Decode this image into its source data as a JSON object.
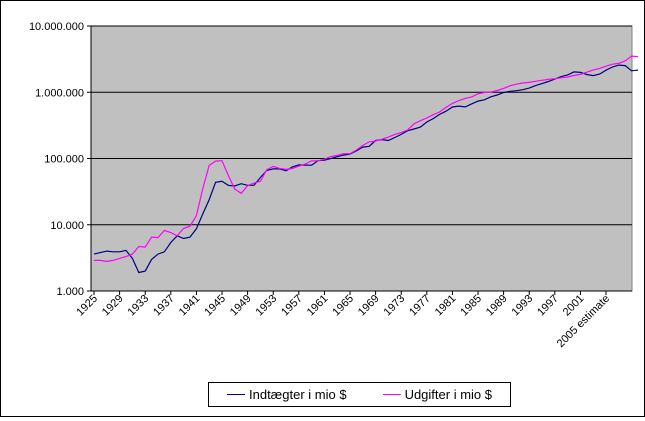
{
  "chart_data": {
    "type": "line",
    "title": "",
    "xlabel": "",
    "ylabel": "",
    "y_scale": "log",
    "ylim": [
      1000,
      10000000
    ],
    "grid": "horizontal",
    "plot_background": "#C0C0C0",
    "legend_position": "bottom",
    "y_ticks": [
      1000,
      10000,
      100000,
      1000000,
      10000000
    ],
    "y_tick_labels": [
      "1.000",
      "10.000",
      "100.000",
      "1.000.000",
      "10.000.000"
    ],
    "x_tick_labels": [
      "1925",
      "1929",
      "1933",
      "1937",
      "1941",
      "1945",
      "1949",
      "1953",
      "1957",
      "1961",
      "1965",
      "1969",
      "1973",
      "1977",
      "1981",
      "1985",
      "1989",
      "1993",
      "1997",
      "2001",
      "2005 estimate"
    ],
    "x": [
      "1925",
      "1926",
      "1927",
      "1928",
      "1929",
      "1930",
      "1931",
      "1932",
      "1933",
      "1934",
      "1935",
      "1936",
      "1937",
      "1938",
      "1939",
      "1940",
      "1941",
      "1942",
      "1943",
      "1944",
      "1945",
      "1946",
      "1947",
      "1948",
      "1949",
      "1950",
      "1951",
      "1952",
      "1953",
      "1954",
      "1955",
      "1956",
      "1957",
      "1958",
      "1959",
      "1960",
      "1961",
      "1962",
      "1963",
      "1964",
      "1965",
      "1966",
      "1967",
      "1968",
      "1969",
      "1970",
      "1971",
      "1972",
      "1973",
      "1974",
      "1975",
      "1976",
      "1977",
      "1978",
      "1979",
      "1980",
      "1981",
      "1982",
      "1983",
      "1984",
      "1985",
      "1986",
      "1987",
      "1988",
      "1989",
      "1990",
      "1991",
      "1992",
      "1993",
      "1994",
      "1995",
      "1996",
      "1997",
      "1998",
      "1999",
      "2000",
      "2001",
      "2002",
      "2003",
      "2004",
      "2005 estimate",
      "2006",
      "2007",
      "2008",
      "2009",
      "2010"
    ],
    "series": [
      {
        "name": "Indtægter i mio $",
        "color": "#000080",
        "values": [
          3600,
          3800,
          4000,
          3900,
          3900,
          4100,
          3100,
          1900,
          2000,
          3000,
          3600,
          3900,
          5400,
          6800,
          6200,
          6500,
          8700,
          14600,
          24000,
          43700,
          45200,
          39300,
          38500,
          41600,
          39400,
          39400,
          51600,
          66200,
          69600,
          69700,
          65500,
          74600,
          80000,
          79600,
          79200,
          92500,
          94400,
          99700,
          106600,
          112600,
          116800,
          130800,
          148800,
          153000,
          186900,
          192800,
          187100,
          207300,
          230800,
          263200,
          279100,
          298100,
          355600,
          399600,
          463300,
          517100,
          599300,
          617800,
          600600,
          666500,
          734100,
          769200,
          854300,
          909300,
          991100,
          1032000,
          1055000,
          1091000,
          1154300,
          1258600,
          1351800,
          1453100,
          1579300,
          1721800,
          1827500,
          2025200,
          1991100,
          1853100,
          1782300,
          1880100,
          2153900,
          2407300,
          2568000,
          2524000,
          2105000,
          2163000
        ]
      },
      {
        "name": "Udgifter i mio $",
        "color": "#FF00FF",
        "values": [
          2900,
          2900,
          2800,
          2900,
          3100,
          3300,
          3600,
          4700,
          4600,
          6500,
          6400,
          8200,
          7600,
          6800,
          8800,
          9500,
          13700,
          35100,
          78600,
          91300,
          92700,
          55200,
          34500,
          29800,
          38800,
          42600,
          45500,
          67700,
          76100,
          70900,
          68400,
          70600,
          76600,
          82400,
          92100,
          92200,
          97700,
          106800,
          111300,
          118500,
          118200,
          134500,
          157500,
          178100,
          183600,
          195600,
          210200,
          230700,
          245700,
          269400,
          332300,
          371800,
          409200,
          458700,
          504000,
          590900,
          678200,
          745700,
          808400,
          851800,
          946300,
          990400,
          1004000,
          1064400,
          1143700,
          1253000,
          1324200,
          1381500,
          1409400,
          1461800,
          1515700,
          1560500,
          1601100,
          1652400,
          1701800,
          1789000,
          1862800,
          2010900,
          2159900,
          2292800,
          2472000,
          2655000,
          2728000,
          2983000,
          3518000,
          3457000
        ]
      }
    ]
  }
}
